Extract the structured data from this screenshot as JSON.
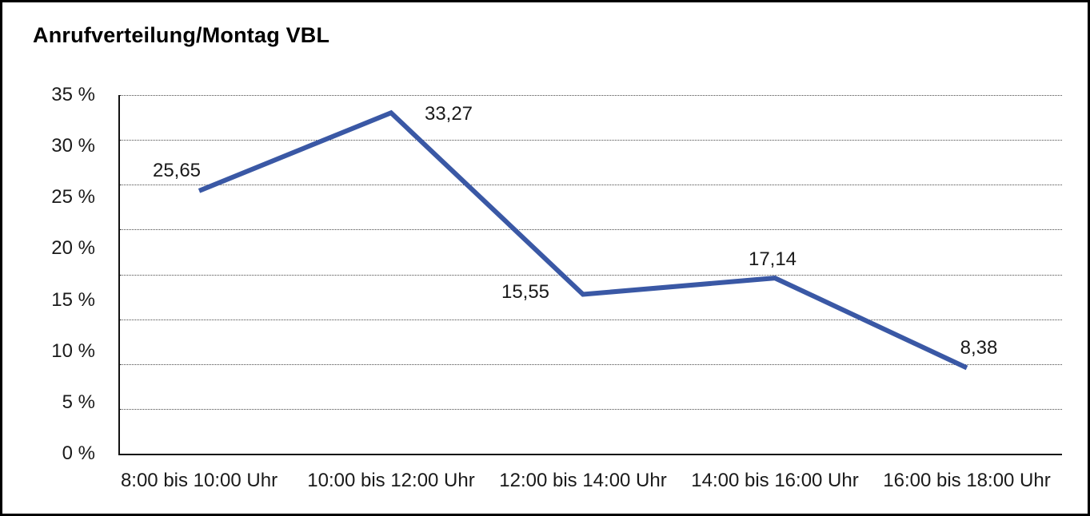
{
  "frame": {
    "background": "#ffffff",
    "border_color": "#000000"
  },
  "chart_data": {
    "type": "line",
    "title": "Anrufverteilung/Montag VBL",
    "categories": [
      "8:00 bis 10:00 Uhr",
      "10:00 bis 12:00 Uhr",
      "12:00 bis 14:00 Uhr",
      "14:00 bis 16:00 Uhr",
      "16:00 bis 18:00 Uhr"
    ],
    "values": [
      25.65,
      33.27,
      15.55,
      17.14,
      8.38
    ],
    "data_labels": [
      "25,65",
      "33,27",
      "15,55",
      "17,14",
      "8,38"
    ],
    "y_ticks": [
      {
        "value": 35,
        "label": "35 %"
      },
      {
        "value": 30,
        "label": "30 %"
      },
      {
        "value": 25,
        "label": "25 %"
      },
      {
        "value": 20,
        "label": "20 %"
      },
      {
        "value": 15,
        "label": "15 %"
      },
      {
        "value": 10,
        "label": "10 %"
      },
      {
        "value": 5,
        "label": "5 %"
      },
      {
        "value": 0,
        "label": "0 %"
      }
    ],
    "ylim": [
      0,
      35
    ],
    "xlabel": "",
    "ylabel": "",
    "line_color": "#3A58A5",
    "grid": {
      "orientation": "horizontal",
      "style": "dotted",
      "line_count": 9
    },
    "legend": "none"
  }
}
